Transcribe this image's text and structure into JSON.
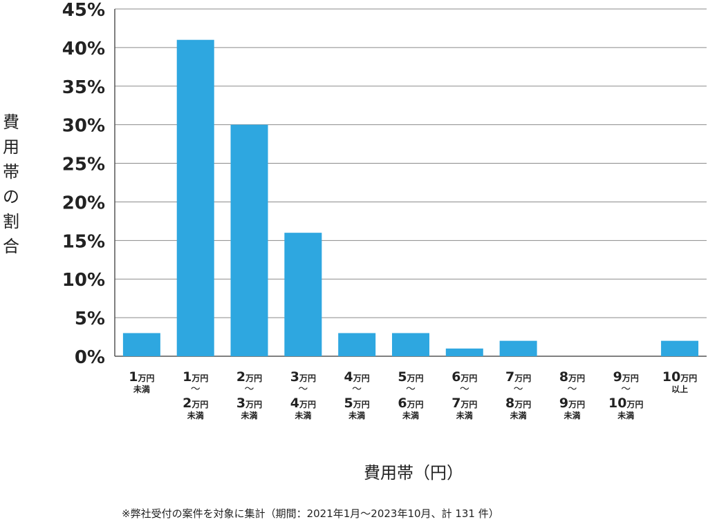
{
  "chart_data": {
    "type": "bar",
    "xlabel": "費用帯（円）",
    "ylabel": "費用帯の割合",
    "ylim": [
      0,
      45
    ],
    "y_ticks": [
      "0%",
      "5%",
      "10%",
      "15%",
      "20%",
      "25%",
      "30%",
      "35%",
      "40%",
      "45%"
    ],
    "grid": true,
    "bar_color": "#2ea7e0",
    "categories": [
      {
        "lines": [
          [
            "1",
            "万円"
          ],
          [
            "",
            "未満"
          ]
        ]
      },
      {
        "lines": [
          [
            "1",
            "万円"
          ],
          [
            "〜",
            ""
          ],
          [
            "2",
            "万円"
          ],
          [
            "",
            "未満"
          ]
        ]
      },
      {
        "lines": [
          [
            "2",
            "万円"
          ],
          [
            "〜",
            ""
          ],
          [
            "3",
            "万円"
          ],
          [
            "",
            "未満"
          ]
        ]
      },
      {
        "lines": [
          [
            "3",
            "万円"
          ],
          [
            "〜",
            ""
          ],
          [
            "4",
            "万円"
          ],
          [
            "",
            "未満"
          ]
        ]
      },
      {
        "lines": [
          [
            "4",
            "万円"
          ],
          [
            "〜",
            ""
          ],
          [
            "5",
            "万円"
          ],
          [
            "",
            "未満"
          ]
        ]
      },
      {
        "lines": [
          [
            "5",
            "万円"
          ],
          [
            "〜",
            ""
          ],
          [
            "6",
            "万円"
          ],
          [
            "",
            "未満"
          ]
        ]
      },
      {
        "lines": [
          [
            "6",
            "万円"
          ],
          [
            "〜",
            ""
          ],
          [
            "7",
            "万円"
          ],
          [
            "",
            "未満"
          ]
        ]
      },
      {
        "lines": [
          [
            "7",
            "万円"
          ],
          [
            "〜",
            ""
          ],
          [
            "8",
            "万円"
          ],
          [
            "",
            "未満"
          ]
        ]
      },
      {
        "lines": [
          [
            "8",
            "万円"
          ],
          [
            "〜",
            ""
          ],
          [
            "9",
            "万円"
          ],
          [
            "",
            "未満"
          ]
        ]
      },
      {
        "lines": [
          [
            "9",
            "万円"
          ],
          [
            "〜",
            ""
          ],
          [
            "10",
            "万円"
          ],
          [
            "",
            "未満"
          ]
        ]
      },
      {
        "lines": [
          [
            "10",
            "万円"
          ],
          [
            "",
            "以上"
          ]
        ]
      }
    ],
    "values": [
      3,
      41,
      30,
      16,
      3,
      3,
      1,
      2,
      0,
      0,
      2
    ]
  },
  "footnote": "※弊社受付の案件を対象に集計（期間：2021年1月〜2023年10月、計 131 件）"
}
